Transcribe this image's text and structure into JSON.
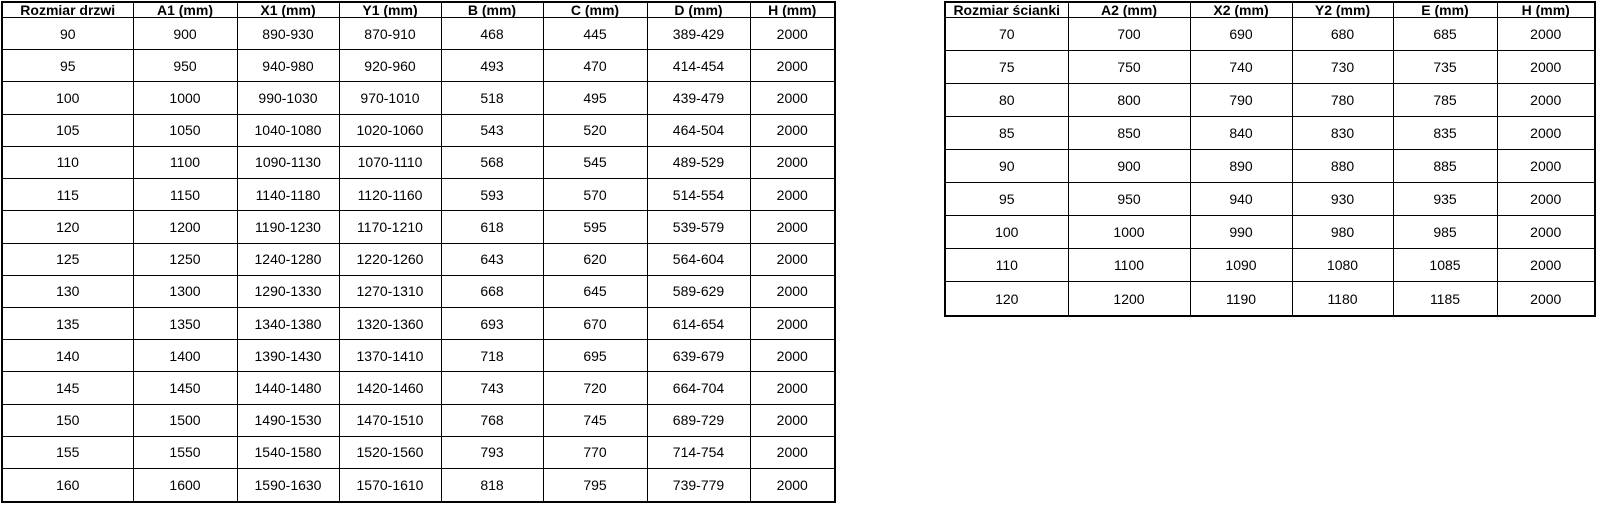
{
  "page": {
    "background_color": "#ffffff",
    "text_color": "#000000",
    "border_color": "#000000"
  },
  "tables": {
    "door_table": {
      "name": "door-size-table",
      "headers": [
        "Rozmiar drzwi",
        "A1 (mm)",
        "X1 (mm)",
        "Y1 (mm)",
        "B (mm)",
        "C (mm)",
        "D (mm)",
        "H (mm)"
      ],
      "rows": [
        [
          "90",
          "900",
          "890-930",
          "870-910",
          "468",
          "445",
          "389-429",
          "2000"
        ],
        [
          "95",
          "950",
          "940-980",
          "920-960",
          "493",
          "470",
          "414-454",
          "2000"
        ],
        [
          "100",
          "1000",
          "990-1030",
          "970-1010",
          "518",
          "495",
          "439-479",
          "2000"
        ],
        [
          "105",
          "1050",
          "1040-1080",
          "1020-1060",
          "543",
          "520",
          "464-504",
          "2000"
        ],
        [
          "110",
          "1100",
          "1090-1130",
          "1070-1110",
          "568",
          "545",
          "489-529",
          "2000"
        ],
        [
          "115",
          "1150",
          "1140-1180",
          "1120-1160",
          "593",
          "570",
          "514-554",
          "2000"
        ],
        [
          "120",
          "1200",
          "1190-1230",
          "1170-1210",
          "618",
          "595",
          "539-579",
          "2000"
        ],
        [
          "125",
          "1250",
          "1240-1280",
          "1220-1260",
          "643",
          "620",
          "564-604",
          "2000"
        ],
        [
          "130",
          "1300",
          "1290-1330",
          "1270-1310",
          "668",
          "645",
          "589-629",
          "2000"
        ],
        [
          "135",
          "1350",
          "1340-1380",
          "1320-1360",
          "693",
          "670",
          "614-654",
          "2000"
        ],
        [
          "140",
          "1400",
          "1390-1430",
          "1370-1410",
          "718",
          "695",
          "639-679",
          "2000"
        ],
        [
          "145",
          "1450",
          "1440-1480",
          "1420-1460",
          "743",
          "720",
          "664-704",
          "2000"
        ],
        [
          "150",
          "1500",
          "1490-1530",
          "1470-1510",
          "768",
          "745",
          "689-729",
          "2000"
        ],
        [
          "155",
          "1550",
          "1540-1580",
          "1520-1560",
          "793",
          "770",
          "714-754",
          "2000"
        ],
        [
          "160",
          "1600",
          "1590-1630",
          "1570-1610",
          "818",
          "795",
          "739-779",
          "2000"
        ]
      ]
    },
    "wall_table": {
      "name": "wall-panel-size-table",
      "headers": [
        "Rozmiar ścianki",
        "A2 (mm)",
        "X2 (mm)",
        "Y2 (mm)",
        "E (mm)",
        "H (mm)"
      ],
      "rows": [
        [
          "70",
          "700",
          "690",
          "680",
          "685",
          "2000"
        ],
        [
          "75",
          "750",
          "740",
          "730",
          "735",
          "2000"
        ],
        [
          "80",
          "800",
          "790",
          "780",
          "785",
          "2000"
        ],
        [
          "85",
          "850",
          "840",
          "830",
          "835",
          "2000"
        ],
        [
          "90",
          "900",
          "890",
          "880",
          "885",
          "2000"
        ],
        [
          "95",
          "950",
          "940",
          "930",
          "935",
          "2000"
        ],
        [
          "100",
          "1000",
          "990",
          "980",
          "985",
          "2000"
        ],
        [
          "110",
          "1100",
          "1090",
          "1080",
          "1085",
          "2000"
        ],
        [
          "120",
          "1200",
          "1190",
          "1180",
          "1185",
          "2000"
        ]
      ]
    }
  }
}
